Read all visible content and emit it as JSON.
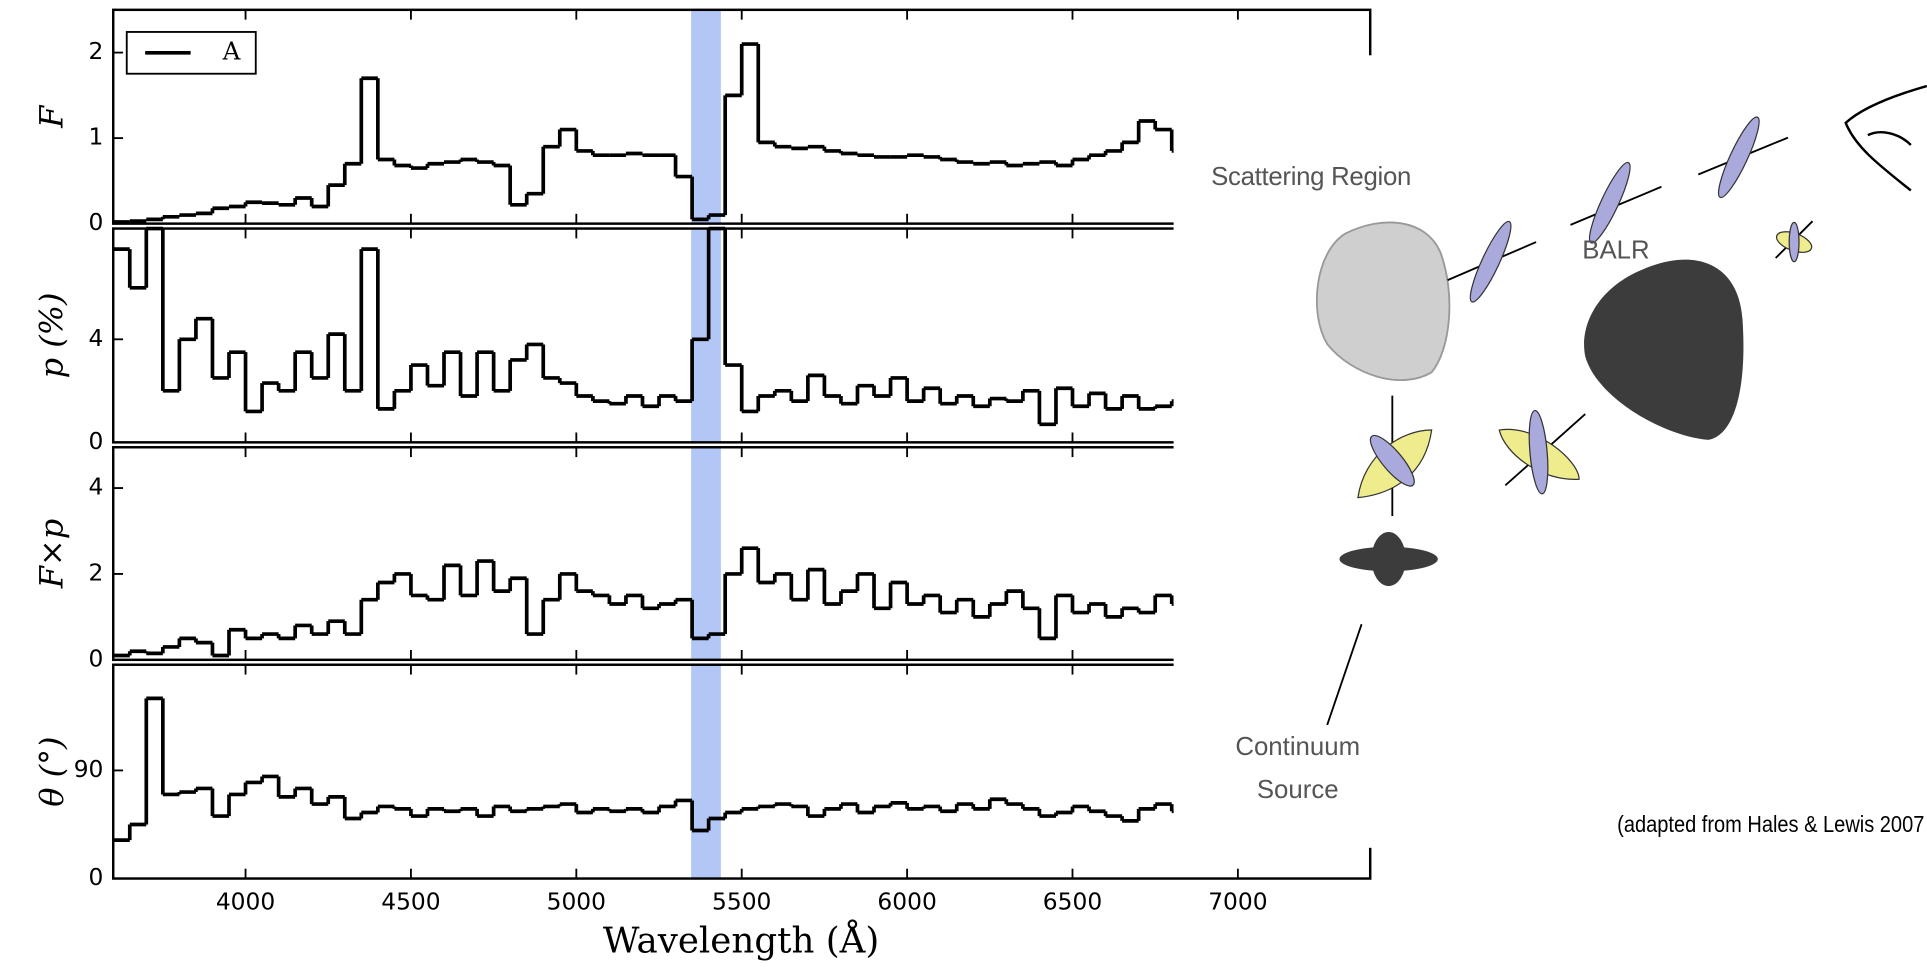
{
  "chart_data": [
    {
      "type": "line",
      "ylabel": "F",
      "legend": "upper left",
      "xtick_labels": false,
      "xlim": [
        3600,
        7400
      ],
      "xticks": [
        4000,
        4500,
        5000,
        5500,
        6000,
        6500,
        7000
      ],
      "ylim": [
        0,
        2.5
      ],
      "yticks": [
        0,
        1,
        2
      ],
      "highlight_span": [
        5347,
        5437
      ],
      "x": [
        3600,
        3650,
        3700,
        3750,
        3800,
        3850,
        3900,
        3950,
        4000,
        4050,
        4100,
        4150,
        4200,
        4250,
        4300,
        4350,
        4400,
        4450,
        4500,
        4550,
        4600,
        4650,
        4700,
        4750,
        4800,
        4850,
        4900,
        4950,
        5000,
        5050,
        5100,
        5150,
        5200,
        5250,
        5300,
        5350,
        5400,
        5450,
        5500,
        5550,
        5600,
        5650,
        5700,
        5750,
        5800,
        5850,
        5900,
        5950,
        6000,
        6050,
        6100,
        6150,
        6200,
        6250,
        6300,
        6350,
        6400,
        6450,
        6500,
        6550,
        6600,
        6650,
        6700,
        6750,
        6800
      ],
      "series": [
        {
          "name": "A",
          "color": "#000000",
          "values": [
            0.02,
            0.03,
            0.05,
            0.08,
            0.1,
            0.12,
            0.18,
            0.2,
            0.25,
            0.24,
            0.22,
            0.3,
            0.2,
            0.45,
            0.7,
            1.7,
            0.75,
            0.68,
            0.65,
            0.7,
            0.72,
            0.75,
            0.72,
            0.68,
            0.22,
            0.35,
            0.9,
            1.1,
            0.85,
            0.8,
            0.8,
            0.82,
            0.8,
            0.8,
            0.55,
            0.05,
            0.1,
            1.5,
            2.1,
            0.95,
            0.9,
            0.88,
            0.9,
            0.85,
            0.82,
            0.8,
            0.78,
            0.78,
            0.8,
            0.78,
            0.75,
            0.72,
            0.7,
            0.72,
            0.68,
            0.7,
            0.72,
            0.68,
            0.75,
            0.8,
            0.85,
            0.95,
            1.2,
            1.1,
            0.85
          ]
        }
      ]
    },
    {
      "type": "line",
      "ylabel": "p (%)",
      "xtick_labels": false,
      "xlim": [
        3600,
        7400
      ],
      "xticks": [
        4000,
        4500,
        5000,
        5500,
        6000,
        6500,
        7000
      ],
      "ylim": [
        0,
        8.3
      ],
      "yticks": [
        0,
        4
      ],
      "highlight_span": [
        5347,
        5437
      ],
      "x": [
        3600,
        3650,
        3700,
        3750,
        3800,
        3850,
        3900,
        3950,
        4000,
        4050,
        4100,
        4150,
        4200,
        4250,
        4300,
        4350,
        4400,
        4450,
        4500,
        4550,
        4600,
        4650,
        4700,
        4750,
        4800,
        4850,
        4900,
        4950,
        5000,
        5050,
        5100,
        5150,
        5200,
        5250,
        5300,
        5350,
        5400,
        5450,
        5500,
        5550,
        5600,
        5650,
        5700,
        5750,
        5800,
        5850,
        5900,
        5950,
        6000,
        6050,
        6100,
        6150,
        6200,
        6250,
        6300,
        6350,
        6400,
        6450,
        6500,
        6550,
        6600,
        6650,
        6700,
        6750,
        6800
      ],
      "series": [
        {
          "color": "#000000",
          "values": [
            7.5,
            6,
            8.3,
            2,
            4,
            4.8,
            2.5,
            3.5,
            1.2,
            2.3,
            2,
            3.5,
            2.5,
            4.2,
            2,
            7.5,
            1.3,
            2,
            3,
            2.2,
            3.5,
            1.8,
            3.5,
            2,
            3.2,
            3.8,
            2.5,
            2.3,
            1.8,
            1.6,
            1.5,
            1.8,
            1.4,
            1.8,
            1.6,
            4,
            8.3,
            3,
            1.2,
            1.8,
            2,
            1.6,
            2.6,
            1.8,
            1.5,
            2.2,
            1.8,
            2.5,
            1.6,
            2.1,
            1.5,
            1.8,
            1.4,
            1.7,
            1.6,
            2,
            0.7,
            2.1,
            1.4,
            1.9,
            1.3,
            1.8,
            1.3,
            1.4,
            1.6
          ]
        }
      ]
    },
    {
      "type": "line",
      "ylabel": "F×p",
      "xtick_labels": false,
      "xlim": [
        3600,
        7400
      ],
      "xticks": [
        4000,
        4500,
        5000,
        5500,
        6000,
        6500,
        7000
      ],
      "ylim": [
        0,
        4.95
      ],
      "yticks": [
        0,
        2,
        4
      ],
      "highlight_span": [
        5347,
        5437
      ],
      "x": [
        3600,
        3650,
        3700,
        3750,
        3800,
        3850,
        3900,
        3950,
        4000,
        4050,
        4100,
        4150,
        4200,
        4250,
        4300,
        4350,
        4400,
        4450,
        4500,
        4550,
        4600,
        4650,
        4700,
        4750,
        4800,
        4850,
        4900,
        4950,
        5000,
        5050,
        5100,
        5150,
        5200,
        5250,
        5300,
        5350,
        5400,
        5450,
        5500,
        5550,
        5600,
        5650,
        5700,
        5750,
        5800,
        5850,
        5900,
        5950,
        6000,
        6050,
        6100,
        6150,
        6200,
        6250,
        6300,
        6350,
        6400,
        6450,
        6500,
        6550,
        6600,
        6650,
        6700,
        6750,
        6800
      ],
      "series": [
        {
          "color": "#000000",
          "values": [
            0.1,
            0.2,
            0.15,
            0.3,
            0.5,
            0.4,
            0.1,
            0.7,
            0.5,
            0.6,
            0.5,
            0.8,
            0.6,
            0.9,
            0.6,
            1.4,
            1.8,
            2.0,
            1.5,
            1.4,
            2.2,
            1.5,
            2.3,
            1.6,
            1.9,
            0.6,
            1.4,
            2.0,
            1.6,
            1.5,
            1.3,
            1.5,
            1.2,
            1.3,
            1.4,
            0.5,
            0.6,
            2.0,
            2.6,
            1.8,
            2.0,
            1.4,
            2.1,
            1.3,
            1.6,
            2.0,
            1.2,
            1.8,
            1.3,
            1.5,
            1.1,
            1.4,
            1.0,
            1.3,
            1.6,
            1.2,
            0.5,
            1.5,
            1.1,
            1.3,
            1.0,
            1.2,
            1.1,
            1.5,
            1.3
          ]
        }
      ]
    },
    {
      "type": "line",
      "ylabel": "θ (°)",
      "xlabel": "Wavelength (Å)",
      "xtick_labels": true,
      "xlim": [
        3600,
        7400
      ],
      "xticks": [
        4000,
        4500,
        5000,
        5500,
        6000,
        6500,
        7000
      ],
      "ylim": [
        0,
        178
      ],
      "yticks": [
        0,
        90
      ],
      "highlight_span": [
        5347,
        5437
      ],
      "x": [
        3600,
        3650,
        3700,
        3750,
        3800,
        3850,
        3900,
        3950,
        4000,
        4050,
        4100,
        4150,
        4200,
        4250,
        4300,
        4350,
        4400,
        4450,
        4500,
        4550,
        4600,
        4650,
        4700,
        4750,
        4800,
        4850,
        4900,
        4950,
        5000,
        5050,
        5100,
        5150,
        5200,
        5250,
        5300,
        5350,
        5400,
        5450,
        5500,
        5550,
        5600,
        5650,
        5700,
        5750,
        5800,
        5850,
        5900,
        5950,
        6000,
        6050,
        6100,
        6150,
        6200,
        6250,
        6300,
        6350,
        6400,
        6450,
        6500,
        6550,
        6600,
        6650,
        6700,
        6750,
        6800
      ],
      "series": [
        {
          "color": "#000000",
          "values": [
            32,
            45,
            150,
            70,
            72,
            75,
            52,
            70,
            80,
            85,
            68,
            75,
            62,
            68,
            50,
            55,
            60,
            58,
            52,
            58,
            56,
            58,
            52,
            60,
            56,
            58,
            60,
            62,
            55,
            58,
            56,
            58,
            55,
            60,
            65,
            40,
            50,
            55,
            58,
            60,
            62,
            60,
            52,
            58,
            62,
            55,
            60,
            63,
            58,
            60,
            56,
            62,
            58,
            66,
            62,
            58,
            52,
            55,
            60,
            56,
            52,
            48,
            58,
            62,
            56
          ]
        }
      ]
    }
  ],
  "diagram": {
    "scattering_label": "Scattering Region",
    "balr_label": "BALR",
    "continuum_label": [
      "Continuum",
      "Source"
    ],
    "credit": "(adapted from Hales & Lewis 2007"
  }
}
